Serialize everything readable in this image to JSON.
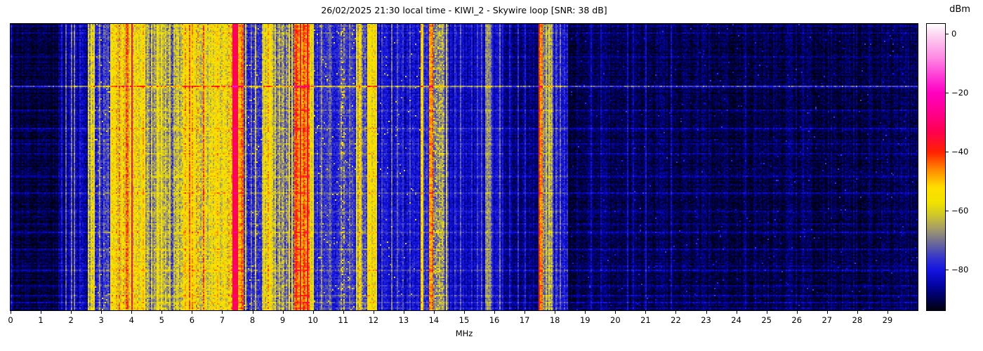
{
  "chart_data": {
    "type": "heatmap",
    "subtype": "radio-spectrum-waterfall",
    "title": "26/02/2025 21:30 local time - KIWI_2 - Skywire loop [SNR: 38 dB]",
    "xlabel": "MHz",
    "x_range": [
      0,
      30
    ],
    "x_ticks": [
      0,
      1,
      2,
      3,
      4,
      5,
      6,
      7,
      8,
      9,
      10,
      11,
      12,
      13,
      14,
      15,
      16,
      17,
      18,
      19,
      20,
      21,
      22,
      23,
      24,
      25,
      26,
      27,
      28,
      29
    ],
    "y_axis": "time (no tick labels shown)",
    "grid": false,
    "colorbar": {
      "label": "dBm",
      "ticks": [
        0,
        -20,
        -40,
        -60,
        -80
      ],
      "vmax": 3.4,
      "vmin": -93.7
    },
    "colormap_stops_dbm_hex": [
      [
        3.4,
        "#ffffff"
      ],
      [
        0,
        "#fdd7f3"
      ],
      [
        -8,
        "#ff8ae4"
      ],
      [
        -15,
        "#ff33d4"
      ],
      [
        -20,
        "#ff00c0"
      ],
      [
        -27,
        "#ff008a"
      ],
      [
        -33,
        "#ff0050"
      ],
      [
        -40,
        "#ff2000"
      ],
      [
        -46,
        "#ff8800"
      ],
      [
        -52,
        "#ffdf00"
      ],
      [
        -57,
        "#f2e200"
      ],
      [
        -61,
        "#d2ca28"
      ],
      [
        -66,
        "#a59c6b"
      ],
      [
        -71,
        "#6a689b"
      ],
      [
        -76,
        "#3434cf"
      ],
      [
        -80,
        "#1414e0"
      ],
      [
        -85,
        "#0404a4"
      ],
      [
        -89,
        "#000060"
      ],
      [
        -93,
        "#000018"
      ],
      [
        -96,
        "#000000"
      ]
    ],
    "bands_format": "[fStartMHz, fEndMHz, meanLevel_dBm, noise_dB, rowGain, sparseProb?, sparseLevel_dBm?]",
    "bands": [
      [
        0.0,
        0.08,
        -86,
        3,
        1.6
      ],
      [
        0.08,
        1.6,
        -91,
        2.6,
        1.8
      ],
      [
        1.6,
        1.8,
        -87,
        3,
        1.7
      ],
      [
        1.8,
        2.55,
        -85,
        3.5,
        1.5
      ],
      [
        2.55,
        2.8,
        -66,
        6,
        1
      ],
      [
        2.8,
        3.3,
        -79,
        4.5,
        1,
        0.025,
        -62
      ],
      [
        3.3,
        4.45,
        -59,
        5,
        1
      ],
      [
        4.45,
        4.78,
        -70,
        5.5,
        1
      ],
      [
        4.78,
        5.08,
        -62,
        5,
        1
      ],
      [
        5.08,
        5.45,
        -70,
        6,
        1
      ],
      [
        5.45,
        5.7,
        -66,
        6,
        1
      ],
      [
        5.7,
        6.1,
        -55,
        5,
        1
      ],
      [
        6.1,
        6.5,
        -60,
        6,
        1
      ],
      [
        6.5,
        7.3,
        -60,
        6,
        1
      ],
      [
        7.3,
        7.35,
        -48,
        4,
        1
      ],
      [
        7.35,
        7.54,
        -32,
        2.5,
        1
      ],
      [
        7.54,
        7.7,
        -47,
        4,
        1
      ],
      [
        7.7,
        8.3,
        -77,
        4.5,
        1,
        0.02,
        -60
      ],
      [
        8.3,
        8.68,
        -60,
        5,
        1
      ],
      [
        8.68,
        9.4,
        -70,
        6,
        1
      ],
      [
        9.4,
        9.9,
        -46,
        5,
        1
      ],
      [
        9.9,
        10.05,
        -58,
        4,
        1
      ],
      [
        10.05,
        10.92,
        -78,
        4,
        1,
        0.02,
        -60
      ],
      [
        10.92,
        11.04,
        -74,
        6,
        1,
        0.12,
        -54
      ],
      [
        11.04,
        11.42,
        -78,
        4,
        1,
        0.02,
        -62
      ],
      [
        11.42,
        11.62,
        -62,
        5,
        1
      ],
      [
        11.62,
        11.78,
        -74,
        5,
        1
      ],
      [
        11.78,
        12.12,
        -57,
        4.5,
        1
      ],
      [
        12.12,
        13.55,
        -82,
        3.5,
        1.1,
        0.012,
        -64
      ],
      [
        13.55,
        13.67,
        -58,
        4,
        1
      ],
      [
        13.67,
        13.82,
        -76,
        4,
        1
      ],
      [
        13.82,
        13.98,
        -51,
        4,
        1
      ],
      [
        13.98,
        14.35,
        -69,
        6,
        1,
        0.1,
        -58
      ],
      [
        14.35,
        14.5,
        -75,
        4,
        1
      ],
      [
        14.5,
        15.12,
        -83,
        3,
        1.2
      ],
      [
        15.12,
        15.7,
        -84,
        3,
        1.2
      ],
      [
        15.7,
        15.92,
        -71,
        4,
        1
      ],
      [
        15.92,
        16.3,
        -82,
        3,
        1.2
      ],
      [
        16.3,
        17.45,
        -87,
        3,
        1.3
      ],
      [
        17.45,
        17.58,
        -45,
        3.5,
        1
      ],
      [
        17.58,
        17.92,
        -67,
        5,
        1
      ],
      [
        17.92,
        18.45,
        -80,
        4,
        1.1
      ],
      [
        18.45,
        30.0,
        -90,
        2.8,
        1.2,
        0.008,
        -80
      ]
    ],
    "carriers_format": "[fMHz, level_dBm, widthMHz?]",
    "carriers": [
      [
        0.03,
        -82
      ],
      [
        1.7,
        -81
      ],
      [
        1.85,
        -74
      ],
      [
        2.02,
        -70
      ],
      [
        2.13,
        -71
      ],
      [
        2.3,
        -80
      ],
      [
        2.68,
        -58
      ],
      [
        2.75,
        -57
      ],
      [
        2.95,
        -68
      ],
      [
        3.1,
        -74
      ],
      [
        3.22,
        -72
      ],
      [
        3.35,
        -54
      ],
      [
        3.5,
        -50
      ],
      [
        3.62,
        -48
      ],
      [
        3.72,
        -50
      ],
      [
        3.82,
        -43
      ],
      [
        3.9,
        -45
      ],
      [
        4.0,
        -37
      ],
      [
        4.1,
        -54
      ],
      [
        4.2,
        -52
      ],
      [
        4.32,
        -56
      ],
      [
        4.4,
        -50
      ],
      [
        4.55,
        -63
      ],
      [
        4.65,
        -61
      ],
      [
        4.85,
        -56
      ],
      [
        5.0,
        -57
      ],
      [
        5.12,
        -62
      ],
      [
        5.25,
        -60
      ],
      [
        5.4,
        -62
      ],
      [
        5.55,
        -60
      ],
      [
        5.8,
        -48
      ],
      [
        5.93,
        -43
      ],
      [
        6.03,
        -48
      ],
      [
        6.18,
        -50
      ],
      [
        6.4,
        -44,
        0.035
      ],
      [
        6.65,
        -55
      ],
      [
        6.85,
        -52
      ],
      [
        7.05,
        -55
      ],
      [
        7.2,
        -50
      ],
      [
        7.62,
        -46
      ],
      [
        7.8,
        -62
      ],
      [
        7.95,
        -70
      ],
      [
        8.1,
        -64
      ],
      [
        8.38,
        -55
      ],
      [
        8.5,
        -47
      ],
      [
        8.6,
        -56
      ],
      [
        8.75,
        -60
      ],
      [
        8.9,
        -62
      ],
      [
        9.05,
        -65
      ],
      [
        9.22,
        -56
      ],
      [
        9.32,
        -58
      ],
      [
        9.45,
        -40
      ],
      [
        9.59,
        -36
      ],
      [
        9.7,
        -44
      ],
      [
        9.8,
        -34
      ],
      [
        9.86,
        -44
      ],
      [
        10.29,
        -68
      ],
      [
        10.55,
        -72
      ],
      [
        11.2,
        -70
      ],
      [
        11.47,
        -56
      ],
      [
        11.55,
        -52
      ],
      [
        11.85,
        -53
      ],
      [
        12.0,
        -52
      ],
      [
        12.08,
        -55
      ],
      [
        12.3,
        -76
      ],
      [
        12.6,
        -70
      ],
      [
        12.8,
        -72
      ],
      [
        13.0,
        -76
      ],
      [
        13.2,
        -74
      ],
      [
        13.6,
        -53,
        0.05
      ],
      [
        13.87,
        -46
      ],
      [
        13.95,
        -44,
        0.035
      ],
      [
        14.43,
        -60
      ],
      [
        14.7,
        -76
      ],
      [
        14.9,
        -73
      ],
      [
        15.0,
        -70
      ],
      [
        15.25,
        -78
      ],
      [
        15.45,
        -76
      ],
      [
        15.6,
        -74
      ],
      [
        15.75,
        -66
      ],
      [
        15.85,
        -67
      ],
      [
        16.2,
        -72
      ],
      [
        16.5,
        -80
      ],
      [
        16.8,
        -78
      ],
      [
        17.0,
        -80
      ],
      [
        17.5,
        -40,
        0.05
      ],
      [
        17.7,
        -62
      ],
      [
        17.82,
        -60
      ],
      [
        18.05,
        -74
      ],
      [
        18.2,
        -72
      ],
      [
        19.2,
        -82
      ],
      [
        19.55,
        -84
      ],
      [
        20.4,
        -83
      ],
      [
        20.6,
        -84
      ],
      [
        21.0,
        -82
      ],
      [
        21.85,
        -84
      ],
      [
        24.3,
        -86
      ],
      [
        26.2,
        -87
      ],
      [
        27.9,
        -87
      ]
    ],
    "row_events_format": "[timeFraction, boost_dB] (horizontal noise-burst lines; 0.215 is the strong blue line)",
    "row_events": [
      [
        0.005,
        4
      ],
      [
        0.03,
        3.5
      ],
      [
        0.115,
        3
      ],
      [
        0.215,
        14
      ],
      [
        0.3,
        3.5
      ],
      [
        0.365,
        4.5
      ],
      [
        0.42,
        3
      ],
      [
        0.455,
        4.5
      ],
      [
        0.53,
        3.5
      ],
      [
        0.59,
        5
      ],
      [
        0.655,
        3.5
      ],
      [
        0.7,
        3
      ],
      [
        0.73,
        4.5
      ],
      [
        0.79,
        3.5
      ],
      [
        0.845,
        3
      ],
      [
        0.86,
        4.5
      ],
      [
        0.915,
        3.5
      ],
      [
        0.95,
        5
      ],
      [
        0.975,
        4.5
      ],
      [
        0.995,
        3.5
      ]
    ],
    "row_noise_sigma_db": 1.15,
    "seed": 20250226
  }
}
